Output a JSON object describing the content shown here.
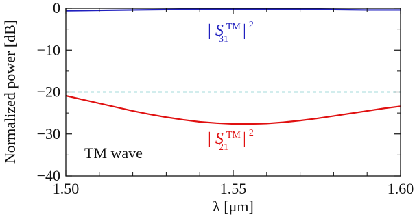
{
  "chart_data": {
    "type": "line",
    "title": "",
    "xlabel": "λ [μm]",
    "ylabel": "Normalized power [dB]",
    "xlim": [
      1.5,
      1.6
    ],
    "ylim": [
      -40,
      0
    ],
    "grid": false,
    "x_ticks": [
      "1.50",
      "1.55",
      "1.60"
    ],
    "y_ticks": [
      "0",
      "−10",
      "−20",
      "−30",
      "−40"
    ],
    "x_tick_values": [
      1.5,
      1.55,
      1.6
    ],
    "y_tick_values": [
      0,
      -10,
      -20,
      -30,
      -40
    ],
    "series": [
      {
        "name": "|S31TM|2",
        "color": "#1f1fbf",
        "x": [
          1.5,
          1.51,
          1.52,
          1.53,
          1.54,
          1.55,
          1.56,
          1.57,
          1.58,
          1.59,
          1.6
        ],
        "y": [
          -0.6,
          -0.5,
          -0.4,
          -0.3,
          -0.2,
          -0.2,
          -0.2,
          -0.2,
          -0.3,
          -0.4,
          -0.4
        ]
      },
      {
        "name": "|S21TM|2",
        "color": "#e01010",
        "x": [
          1.5,
          1.505,
          1.51,
          1.515,
          1.52,
          1.525,
          1.53,
          1.535,
          1.54,
          1.545,
          1.55,
          1.555,
          1.56,
          1.565,
          1.57,
          1.575,
          1.58,
          1.585,
          1.59,
          1.595,
          1.6
        ],
        "y": [
          -20.9,
          -21.8,
          -22.7,
          -23.6,
          -24.5,
          -25.3,
          -26.0,
          -26.6,
          -27.1,
          -27.4,
          -27.6,
          -27.6,
          -27.5,
          -27.2,
          -26.8,
          -26.3,
          -25.7,
          -25.1,
          -24.5,
          -23.9,
          -23.4
        ]
      }
    ],
    "reference_line": {
      "y": -20,
      "style": "dashed",
      "color": "#4fb8b8"
    },
    "annotations": {
      "s31": {
        "prefix": "|",
        "base": "S",
        "sup": "TM",
        "sub": "31",
        "suffix": "|",
        "power": "2",
        "color": "#1f1fbf"
      },
      "s21": {
        "prefix": "|",
        "base": "S",
        "sup": "TM",
        "sub": "21",
        "suffix": "|",
        "power": "2",
        "color": "#e01010"
      },
      "wave_label": "TM wave"
    }
  }
}
